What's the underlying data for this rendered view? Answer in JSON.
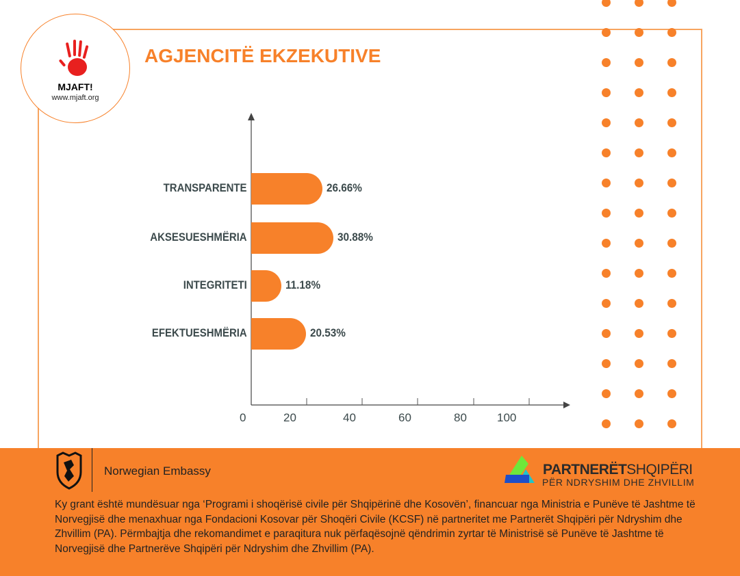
{
  "header": {
    "title": "AGJENCITË EKZEKUTIVE",
    "logo_name": "MJAFT!",
    "logo_url": "www.mjaft.org"
  },
  "chart_data": {
    "type": "bar",
    "orientation": "horizontal",
    "title": "AGJENCITË EKZEKUTIVE",
    "categories": [
      "TRANSPARENTE",
      "AKSESUESHMËRIA",
      "INTEGRITETI",
      "EFEKTUESHMËRIA"
    ],
    "values": [
      26.66,
      30.88,
      11.18,
      20.53
    ],
    "value_labels": [
      "26.66%",
      "30.88%",
      "11.18%",
      "20.53%"
    ],
    "x_ticks": [
      "0",
      "20",
      "40",
      "60",
      "80",
      "100"
    ],
    "xlim": [
      0,
      120
    ],
    "grid": false,
    "color": "#f7812a"
  },
  "footer": {
    "embassy": "Norwegian Embassy",
    "partner_name_bold": "PARTNERËT",
    "partner_name_light": "SHQIPËRI",
    "partner_sub": "PËR NDRYSHIM DHE ZHVILLIM",
    "disclaimer": "Ky grant është mundësuar nga ‘Programi i shoqërisë civile për Shqipërinë dhe Kosovën’, financuar nga Ministria e Punëve të Jashtme të Norvegjisë dhe menaxhuar nga Fondacioni Kosovar për Shoqëri Civile (KCSF) në partneritet me Partnerët Shqipëri për Ndryshim dhe Zhvillim (PA). Përmbajtja dhe rekomandimet e paraqitura nuk përfaqësojnë qëndrimin zyrtar të Ministrisë së Punëve të Jashtme të Norvegjisë dhe Partnerëve Shqipëri për Ndryshim dhe Zhvillim (PA)."
  }
}
